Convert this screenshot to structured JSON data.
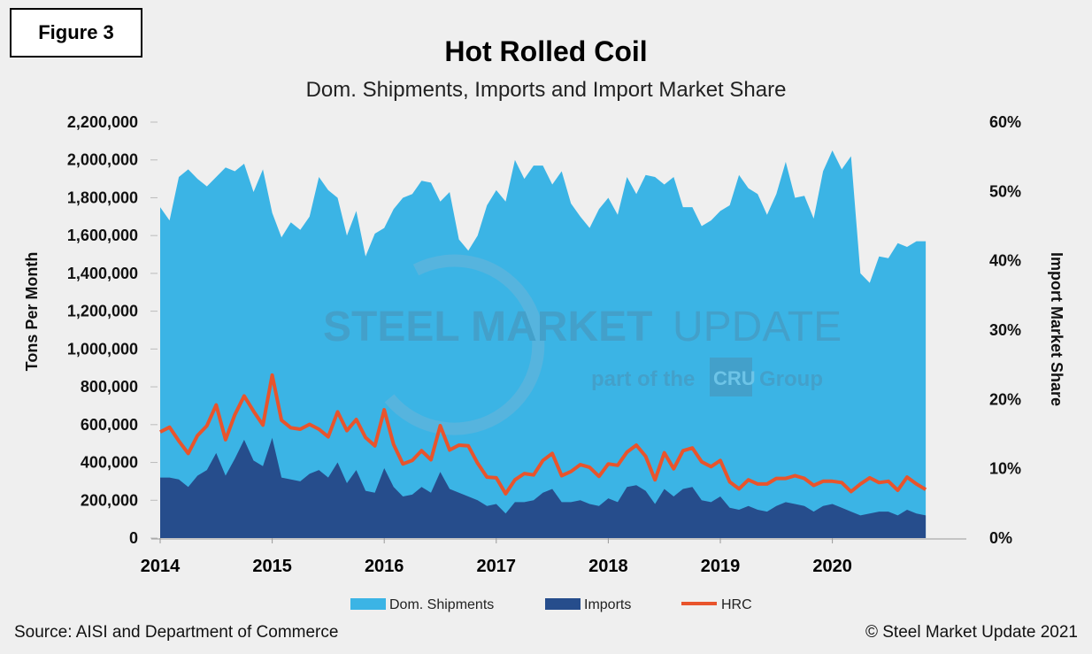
{
  "figure_label": "Figure 3",
  "footer": {
    "source": "Source: AISI and Department of Commerce",
    "copyright": "© Steel Market Update 2021"
  },
  "watermark": {
    "main_bold": "STEEL MARKET",
    "main_light": "UPDATE",
    "sub_left": "part of the",
    "badge": "CRU",
    "sub_right": "Group"
  },
  "colors": {
    "dom_shipments": "#3bb4e5",
    "imports": "#264d8c",
    "hrc": "#e8542c"
  },
  "chart_data": {
    "type": "area",
    "title": "Hot Rolled Coil",
    "subtitle": "Dom. Shipments, Imports and Import Market Share",
    "ylabel": "Tons Per Month",
    "y2label": "Import Market Share",
    "ylim": [
      0,
      2200000
    ],
    "y2lim": [
      0,
      60
    ],
    "yticks": [
      "0",
      "200,000",
      "400,000",
      "600,000",
      "800,000",
      "1,000,000",
      "1,200,000",
      "1,400,000",
      "1,600,000",
      "1,800,000",
      "2,000,000",
      "2,200,000"
    ],
    "y2ticks": [
      "0%",
      "10%",
      "20%",
      "30%",
      "40%",
      "50%",
      "60%"
    ],
    "x_start": "2014-01",
    "x_labels": [
      "2014",
      "2015",
      "2016",
      "2017",
      "2018",
      "2019",
      "2020"
    ],
    "legend": [
      "Dom. Shipments",
      "Imports",
      "HRC"
    ],
    "legend_position": "bottom",
    "series": [
      {
        "name": "Dom. Shipments",
        "kind": "area",
        "axis": "left",
        "values": [
          1750000,
          1680000,
          1910000,
          1950000,
          1900000,
          1860000,
          1910000,
          1960000,
          1940000,
          1980000,
          1830000,
          1950000,
          1720000,
          1590000,
          1670000,
          1630000,
          1700000,
          1910000,
          1840000,
          1800000,
          1600000,
          1730000,
          1490000,
          1610000,
          1640000,
          1740000,
          1800000,
          1820000,
          1890000,
          1880000,
          1780000,
          1830000,
          1580000,
          1520000,
          1600000,
          1760000,
          1840000,
          1780000,
          2000000,
          1900000,
          1970000,
          1970000,
          1870000,
          1940000,
          1770000,
          1700000,
          1640000,
          1740000,
          1800000,
          1710000,
          1910000,
          1820000,
          1920000,
          1910000,
          1870000,
          1910000,
          1750000,
          1750000,
          1650000,
          1680000,
          1730000,
          1760000,
          1920000,
          1850000,
          1820000,
          1710000,
          1820000,
          1990000,
          1800000,
          1810000,
          1690000,
          1940000,
          2050000,
          1950000,
          2020000,
          1400000,
          1350000,
          1490000,
          1480000,
          1560000,
          1540000,
          1570000,
          1570000
        ]
      },
      {
        "name": "Imports",
        "kind": "area",
        "axis": "left",
        "values": [
          320000,
          320000,
          310000,
          270000,
          330000,
          360000,
          450000,
          330000,
          420000,
          520000,
          410000,
          380000,
          530000,
          320000,
          310000,
          300000,
          340000,
          360000,
          320000,
          400000,
          290000,
          360000,
          250000,
          240000,
          370000,
          270000,
          220000,
          230000,
          270000,
          240000,
          350000,
          260000,
          240000,
          220000,
          200000,
          170000,
          180000,
          130000,
          190000,
          190000,
          200000,
          240000,
          260000,
          190000,
          190000,
          200000,
          180000,
          170000,
          210000,
          190000,
          270000,
          280000,
          250000,
          180000,
          260000,
          220000,
          260000,
          270000,
          200000,
          190000,
          220000,
          160000,
          150000,
          170000,
          150000,
          140000,
          170000,
          190000,
          180000,
          170000,
          140000,
          170000,
          180000,
          160000,
          140000,
          120000,
          130000,
          140000,
          140000,
          120000,
          150000,
          130000,
          120000
        ]
      },
      {
        "name": "HRC",
        "kind": "line",
        "axis": "right",
        "values": [
          15.3,
          16.0,
          14.0,
          12.2,
          14.8,
          16.2,
          19.2,
          14.2,
          17.8,
          20.5,
          18.3,
          16.3,
          23.5,
          17.0,
          15.9,
          15.7,
          16.4,
          15.7,
          14.6,
          18.2,
          15.5,
          17.1,
          14.5,
          13.3,
          18.5,
          13.5,
          10.7,
          11.2,
          12.6,
          11.3,
          16.2,
          12.7,
          13.4,
          13.3,
          10.8,
          8.8,
          8.7,
          6.4,
          8.4,
          9.3,
          9.1,
          11.2,
          12.2,
          9.0,
          9.6,
          10.6,
          10.2,
          8.9,
          10.7,
          10.5,
          12.4,
          13.4,
          11.8,
          8.4,
          12.3,
          10.0,
          12.6,
          13.0,
          11.0,
          10.3,
          11.2,
          8.1,
          7.1,
          8.4,
          7.8,
          7.8,
          8.6,
          8.6,
          9.0,
          8.6,
          7.6,
          8.2,
          8.2,
          8.0,
          6.7,
          7.8,
          8.7,
          8.0,
          8.2,
          6.9,
          8.8,
          7.8,
          7.0
        ]
      }
    ]
  }
}
